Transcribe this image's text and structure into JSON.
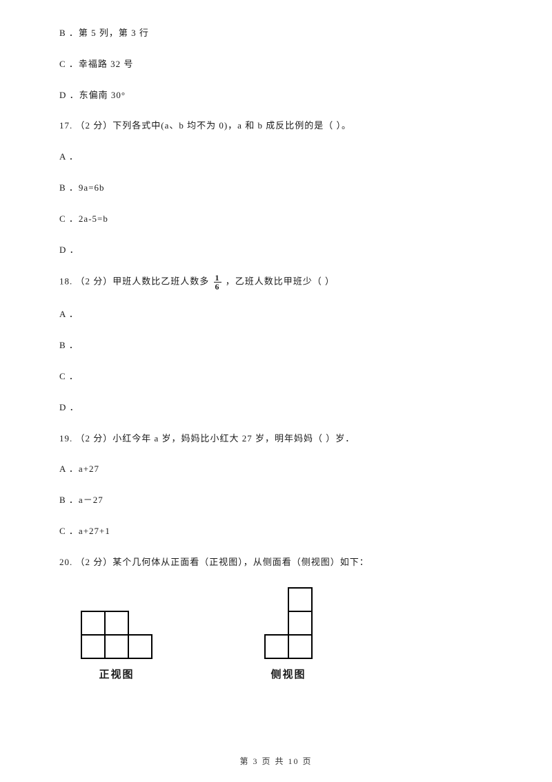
{
  "q16_options": {
    "B": "B ．第 5 列，第 3 行",
    "C": "C ．幸福路 32 号",
    "D": "D ．东偏南 30°"
  },
  "q17": {
    "stem": "17. （2 分）下列各式中(a、b 均不为 0)，a 和 b 成反比例的是（    ）。",
    "A": "A ．",
    "B": "B ．9a=6b",
    "C": "C ．2a-5=b",
    "D": "D ．"
  },
  "q18": {
    "stem_pre": "18. （2 分）甲班人数比乙班人数多 ",
    "fraction_num": "1",
    "fraction_den": "6",
    "stem_post": " ，乙班人数比甲班少（    ）",
    "A": "A ．",
    "B": "B ．",
    "C": "C ．",
    "D": "D ．"
  },
  "q19": {
    "stem": "19. （2 分）小红今年 a 岁，妈妈比小红大 27 岁，明年妈妈（    ）岁．",
    "A": "A ．a+27",
    "B": "B ．a－27",
    "C": "C ．a+27+1"
  },
  "q20": {
    "stem": "20. （2 分）某个几何体从正面看（正视图），从侧面看（侧视图）如下：",
    "front_label": "正视图",
    "side_label": "侧视图"
  },
  "footer": "第 3 页 共 10 页",
  "figures": {
    "cell": 34,
    "stroke": "#000000",
    "stroke_width": 2,
    "front": {
      "cols": 3,
      "rows": 2,
      "cells": [
        [
          0,
          0
        ],
        [
          1,
          0
        ],
        [
          0,
          1
        ],
        [
          1,
          1
        ],
        [
          2,
          1
        ]
      ]
    },
    "side": {
      "cols": 2,
      "rows": 3,
      "cells": [
        [
          1,
          0
        ],
        [
          1,
          1
        ],
        [
          0,
          2
        ],
        [
          1,
          2
        ]
      ]
    }
  }
}
